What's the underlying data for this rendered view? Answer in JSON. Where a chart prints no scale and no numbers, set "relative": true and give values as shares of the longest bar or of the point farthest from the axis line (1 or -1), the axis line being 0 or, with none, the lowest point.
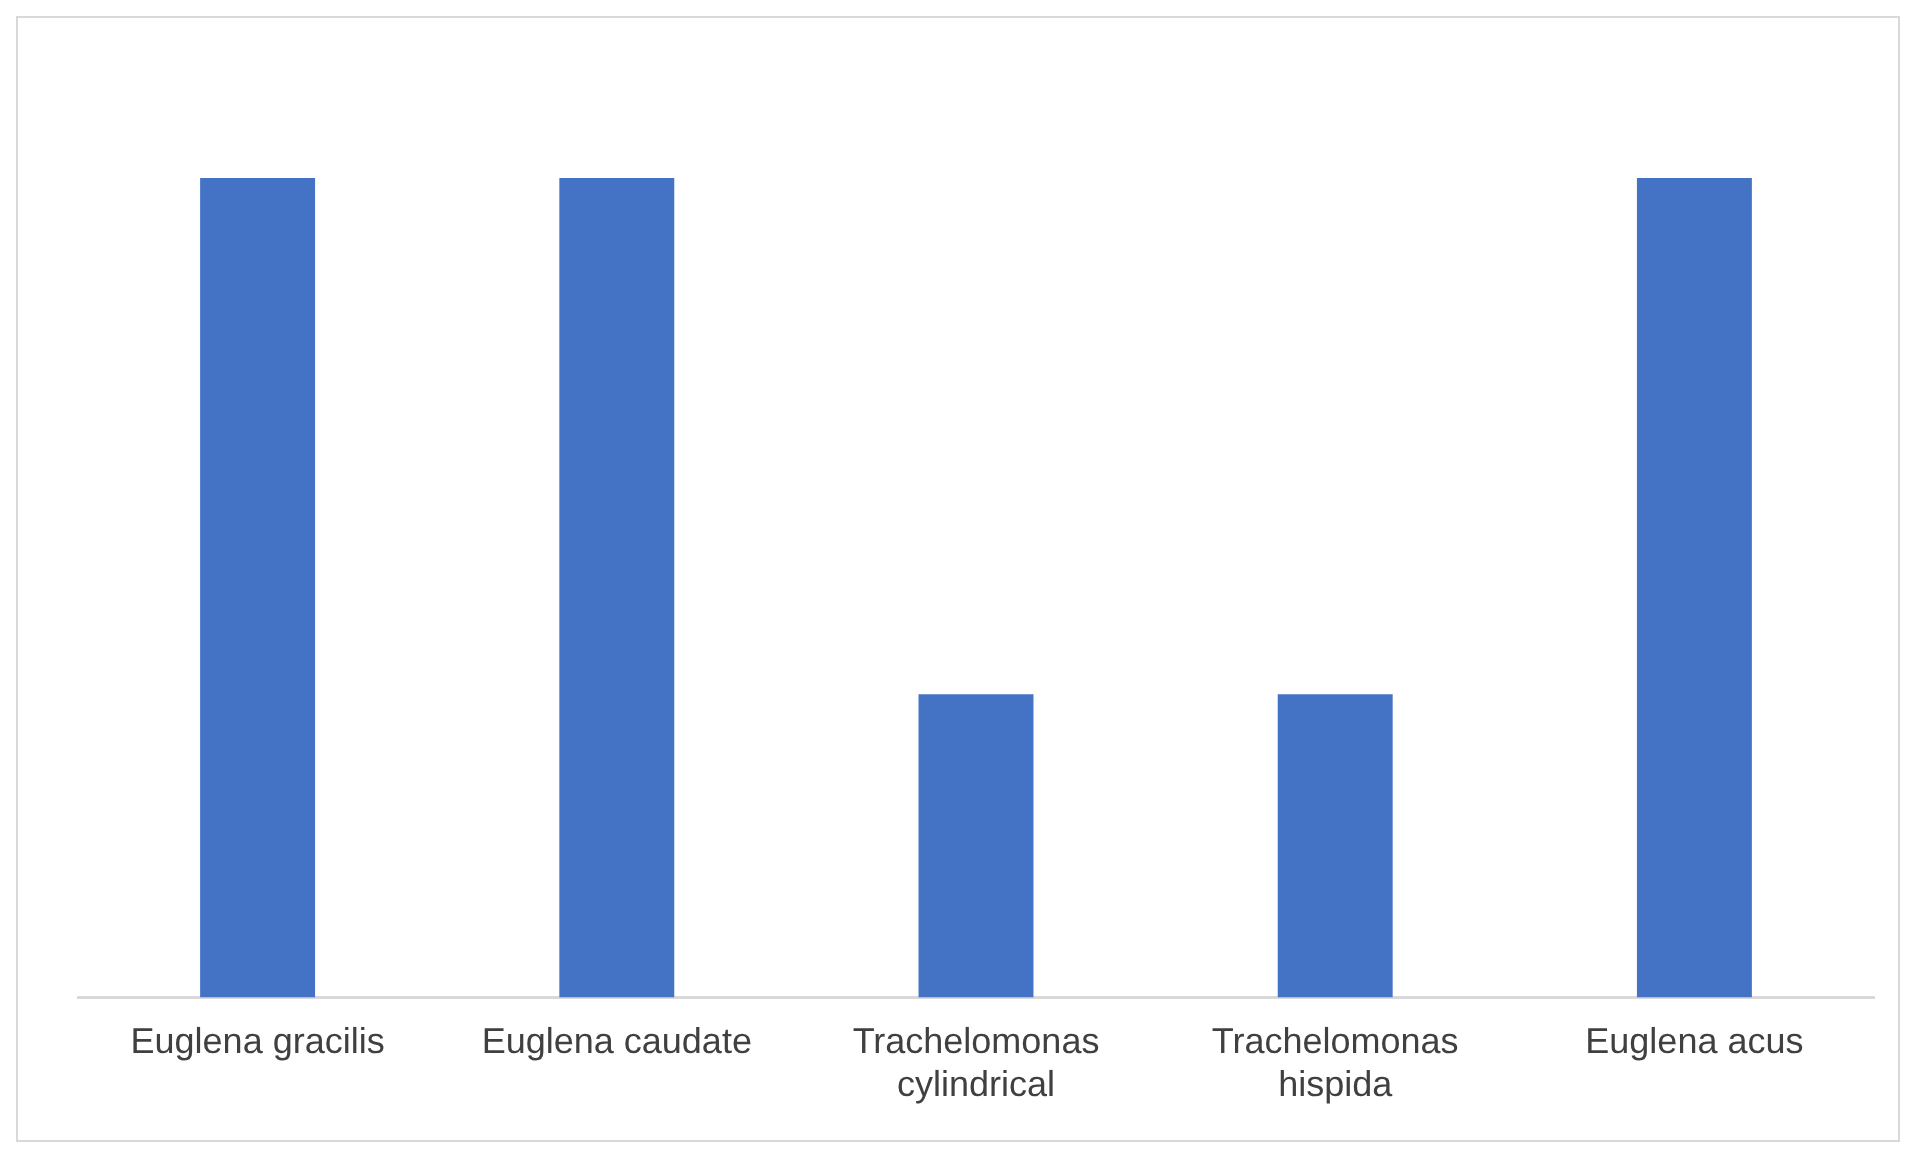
{
  "chart_data": {
    "type": "bar",
    "relative": true,
    "categories": [
      "Euglena gracilis",
      "Euglena caudate",
      "Trachelomonas cylindrical",
      "Trachelomonas hispida",
      "Euglena acus"
    ],
    "values": [
      1,
      1,
      0.37,
      0.37,
      1
    ],
    "color": "#4472c4",
    "grid": false,
    "legend": false
  }
}
